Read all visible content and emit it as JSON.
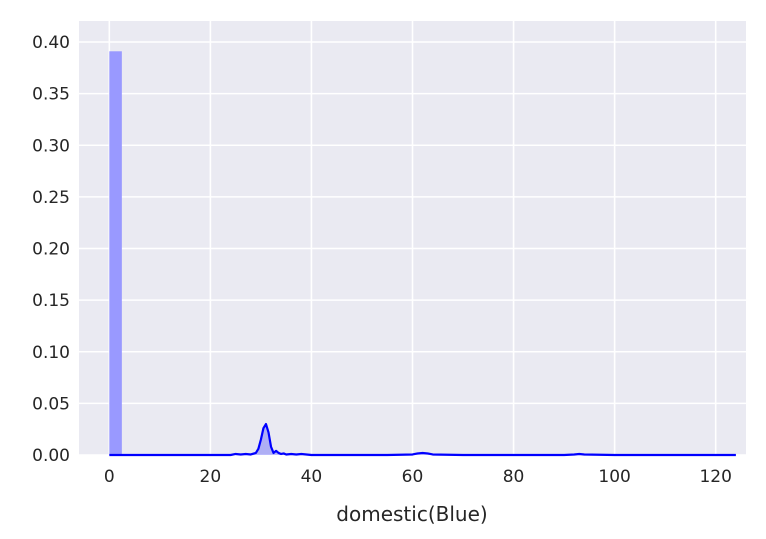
{
  "chart_data": {
    "type": "bar",
    "title": "",
    "xlabel": "domestic(Blue)",
    "ylabel": "",
    "xlim": [
      -6,
      126
    ],
    "ylim": [
      0,
      0.4
    ],
    "xticks": [
      0,
      20,
      40,
      60,
      80,
      100,
      120
    ],
    "xtick_labels": [
      "0",
      "20",
      "40",
      "60",
      "80",
      "100",
      "120"
    ],
    "yticks": [
      0.0,
      0.05,
      0.1,
      0.15,
      0.2,
      0.25,
      0.3,
      0.35,
      0.4
    ],
    "ytick_labels": [
      "0.00",
      "0.05",
      "0.10",
      "0.15",
      "0.20",
      "0.25",
      "0.30",
      "0.35",
      "0.40"
    ],
    "grid": true,
    "background": "#EAEAF2",
    "grid_color": "#FFFFFF",
    "bar_color": "#9999FF",
    "line_color": "#0000FF",
    "histogram": {
      "bins": [
        {
          "x0": 0.0,
          "x1": 2.48,
          "density": 0.391
        }
      ]
    },
    "kde": {
      "x": [
        0,
        1,
        2,
        3,
        5,
        10,
        15,
        20,
        24,
        25,
        26,
        27,
        28,
        29,
        29.5,
        30,
        30.5,
        31,
        31.5,
        32,
        32.5,
        33,
        33.5,
        34,
        34.5,
        35,
        36,
        37,
        38,
        40,
        45,
        50,
        55,
        60,
        61,
        62,
        63,
        64,
        70,
        80,
        90,
        92,
        93,
        94,
        100,
        110,
        124
      ],
      "y": [
        0,
        0,
        0,
        0,
        0,
        0,
        0,
        0,
        0,
        0.001,
        0.0005,
        0.001,
        0.0005,
        0.002,
        0.006,
        0.015,
        0.026,
        0.03,
        0.022,
        0.008,
        0.002,
        0.004,
        0.002,
        0.001,
        0.0015,
        0.0005,
        0.001,
        0.0005,
        0.001,
        0,
        0,
        0,
        0,
        0.0005,
        0.0015,
        0.002,
        0.0015,
        0.0005,
        0,
        0,
        0,
        0.0005,
        0.001,
        0.0005,
        0,
        0,
        0
      ]
    }
  }
}
